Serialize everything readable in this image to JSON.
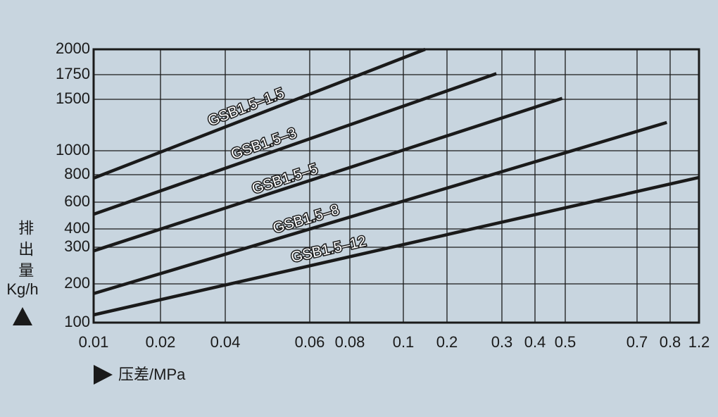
{
  "chart_data": {
    "type": "line",
    "x_label": "压差/MPa",
    "y_label": "排出量",
    "y_unit": "Kg/h",
    "xticks": [
      0.01,
      0.02,
      0.04,
      0.06,
      0.08,
      0.1,
      0.2,
      0.3,
      0.4,
      0.5,
      0.7,
      0.8,
      1.2
    ],
    "xlim": [
      0.01,
      1.2
    ],
    "yticks": [
      100,
      200,
      300,
      400,
      600,
      800,
      1000,
      1500,
      1750,
      2000
    ],
    "ylim": [
      100,
      2000
    ],
    "grid": true,
    "series": [
      {
        "name": "GSB1.5–1.5",
        "color": "#1a1a1a",
        "x": [
          0.01,
          0.15
        ],
        "values": [
          775,
          2000
        ]
      },
      {
        "name": "GSB1.5–3",
        "color": "#1a1a1a",
        "x": [
          0.01,
          0.29
        ],
        "values": [
          510,
          1760
        ]
      },
      {
        "name": "GSB1.5–5",
        "color": "#1a1a1a",
        "x": [
          0.01,
          0.49
        ],
        "values": [
          290,
          1510
        ]
      },
      {
        "name": "GSB1.5–8",
        "color": "#1a1a1a",
        "x": [
          0.01,
          0.79
        ],
        "values": [
          175,
          1275
        ]
      },
      {
        "name": "GSB1.5–12",
        "color": "#1a1a1a",
        "x": [
          0.01,
          1.2
        ],
        "values": [
          120,
          780
        ]
      }
    ]
  }
}
